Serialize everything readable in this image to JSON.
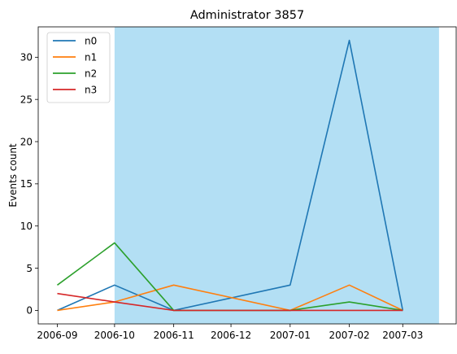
{
  "chart_data": {
    "type": "line",
    "title": "Administrator 3857",
    "xlabel": "",
    "ylabel": "Events count",
    "x": [
      "2006-09-01",
      "2006-10-01",
      "2006-11-01",
      "2007-01-01",
      "2007-02-01",
      "2007-03-01"
    ],
    "x_ticks": [
      "2006-09",
      "2006-10",
      "2006-11",
      "2006-12",
      "2007-01",
      "2007-02",
      "2007-03"
    ],
    "xlim": [
      "2006-08-22",
      "2007-03-29"
    ],
    "y_ticks": [
      0,
      5,
      10,
      15,
      20,
      25,
      30
    ],
    "ylim": [
      -1.6,
      33.6
    ],
    "shaded_region": {
      "x_start": "2006-10-01",
      "x_end": "2007-03-20",
      "color": "#b3dff4"
    },
    "legend_position": "top-left",
    "grid": false,
    "series": [
      {
        "name": "n0",
        "color": "#1f77b4",
        "values": [
          0,
          3,
          0,
          3,
          32,
          0
        ]
      },
      {
        "name": "n1",
        "color": "#ff7f0e",
        "values": [
          0,
          1,
          3,
          0,
          3,
          0
        ]
      },
      {
        "name": "n2",
        "color": "#2ca02c",
        "values": [
          3,
          8,
          0,
          0,
          1,
          0
        ]
      },
      {
        "name": "n3",
        "color": "#d62728",
        "values": [
          2,
          1,
          0,
          0,
          0,
          0
        ]
      }
    ]
  }
}
